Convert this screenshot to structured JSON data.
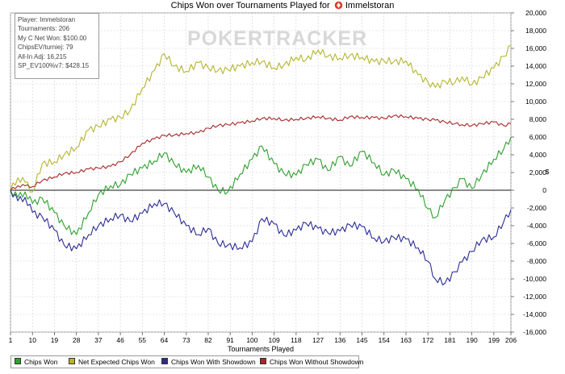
{
  "header": {
    "title": "Chips Won over Tournaments Played for",
    "player": "Immelstoran"
  },
  "watermark": "POKERTRACKER",
  "info_box": [
    "Player: Immelstoran",
    "Tournaments: 206",
    "My C Net Won: $100.00",
    "ChipsEV/turniej: 79",
    "All-In Adj: 16,215",
    "SP_EV100%v7: $428.15"
  ],
  "colors": {
    "chips_won": "#2ea02e",
    "net_expected": "#b5b530",
    "with_showdown": "#2b2b96",
    "without_showdown": "#a82626",
    "grid": "#cfcfcf",
    "zero_line": "#444444",
    "logo": "#e23a2a"
  },
  "chart_data": {
    "type": "line",
    "title": "Chips Won over Tournaments Played for Immelstoran",
    "xlabel": "Tournaments Played",
    "ylabel": "$",
    "xlim": [
      1,
      206
    ],
    "ylim": [
      -16000,
      20000
    ],
    "x_ticks": [
      1,
      10,
      19,
      28,
      37,
      46,
      55,
      64,
      73,
      82,
      91,
      100,
      109,
      118,
      127,
      136,
      145,
      154,
      163,
      172,
      181,
      190,
      199,
      206
    ],
    "y_ticks": [
      20000,
      18000,
      16000,
      14000,
      12000,
      10000,
      8000,
      6000,
      4000,
      2000,
      0,
      -2000,
      -4000,
      -6000,
      -8000,
      -10000,
      -12000,
      -14000,
      -16000
    ],
    "y_tick_labels": [
      "20,000",
      "18,000",
      "16,000",
      "14,000",
      "12,000",
      "10,000",
      "8,000",
      "6,000",
      "4,000",
      "2,000",
      "0",
      "-2,000",
      "-4,000",
      "-6,000",
      "-8,000",
      "-10,000",
      "-12,000",
      "-14,000",
      "-16,000"
    ],
    "grid": true,
    "legend_position": "bottom-left",
    "series": [
      {
        "name": "Chips Won",
        "x": [
          1,
          4,
          7,
          10,
          14,
          19,
          23,
          28,
          33,
          37,
          42,
          46,
          50,
          55,
          60,
          64,
          68,
          73,
          78,
          82,
          86,
          90,
          95,
          100,
          104,
          109,
          113,
          118,
          122,
          127,
          131,
          136,
          140,
          145,
          150,
          154,
          158,
          163,
          168,
          172,
          175,
          179,
          183,
          186,
          190,
          194,
          199,
          203,
          206
        ],
        "y": [
          0,
          -800,
          -200,
          -1500,
          -900,
          -2500,
          -4000,
          -5000,
          -2500,
          -500,
          500,
          600,
          1800,
          2500,
          3300,
          4200,
          3000,
          2000,
          2800,
          1500,
          0,
          -200,
          1800,
          3500,
          5000,
          3000,
          1900,
          1700,
          2900,
          3500,
          2200,
          3800,
          2700,
          4400,
          3100,
          1700,
          2300,
          1300,
          100,
          -2100,
          -3100,
          -1100,
          300,
          1300,
          200,
          1700,
          3500,
          4600,
          6000
        ]
      },
      {
        "name": "Net Expected Chips Won",
        "x": [
          1,
          4,
          7,
          10,
          14,
          19,
          23,
          28,
          33,
          37,
          42,
          46,
          50,
          55,
          60,
          64,
          68,
          73,
          78,
          82,
          86,
          90,
          95,
          100,
          104,
          109,
          113,
          118,
          122,
          127,
          131,
          136,
          140,
          145,
          150,
          154,
          158,
          163,
          168,
          172,
          175,
          179,
          183,
          186,
          190,
          194,
          199,
          203,
          206
        ],
        "y": [
          0,
          1400,
          900,
          -200,
          3000,
          3200,
          4000,
          4800,
          6800,
          7200,
          8000,
          8200,
          9000,
          11500,
          13500,
          15400,
          14000,
          13400,
          14400,
          13800,
          13500,
          13600,
          14000,
          14400,
          14500,
          13800,
          14100,
          15000,
          14700,
          15800,
          15100,
          14900,
          15200,
          15000,
          14500,
          14600,
          14500,
          14600,
          13000,
          12200,
          11600,
          12300,
          12100,
          12800,
          11900,
          12700,
          13800,
          15100,
          16300
        ]
      },
      {
        "name": "Chips Won With Showdown",
        "x": [
          1,
          4,
          7,
          10,
          14,
          19,
          23,
          28,
          33,
          37,
          42,
          46,
          50,
          55,
          60,
          64,
          68,
          73,
          78,
          82,
          86,
          90,
          95,
          100,
          104,
          109,
          113,
          118,
          122,
          127,
          131,
          136,
          140,
          145,
          150,
          154,
          158,
          163,
          168,
          172,
          175,
          179,
          183,
          186,
          190,
          194,
          199,
          203,
          206
        ],
        "y": [
          0,
          -1200,
          -800,
          -2500,
          -3000,
          -4500,
          -6200,
          -6600,
          -5000,
          -4000,
          -3200,
          -2800,
          -3500,
          -2600,
          -1500,
          -1500,
          -2500,
          -4000,
          -5000,
          -4300,
          -6000,
          -6200,
          -6500,
          -5800,
          -3200,
          -3800,
          -5100,
          -4500,
          -3700,
          -4300,
          -4800,
          -4600,
          -3900,
          -4100,
          -5400,
          -5800,
          -5300,
          -5500,
          -6500,
          -8000,
          -10000,
          -10500,
          -9200,
          -8100,
          -6900,
          -5600,
          -5300,
          -3600,
          -2200
        ]
      },
      {
        "name": "Chips Won Without Showdown",
        "x": [
          1,
          4,
          7,
          10,
          14,
          19,
          23,
          28,
          33,
          37,
          42,
          46,
          50,
          55,
          60,
          64,
          68,
          73,
          78,
          82,
          86,
          90,
          95,
          100,
          104,
          109,
          113,
          118,
          122,
          127,
          131,
          136,
          140,
          145,
          150,
          154,
          158,
          163,
          168,
          172,
          175,
          179,
          183,
          186,
          190,
          194,
          199,
          203,
          206
        ],
        "y": [
          0,
          500,
          500,
          400,
          1100,
          1500,
          1900,
          2000,
          2400,
          2500,
          2700,
          3200,
          4000,
          5300,
          5800,
          6200,
          6200,
          6400,
          6500,
          7000,
          7300,
          7400,
          7600,
          7800,
          8100,
          8100,
          7900,
          8000,
          8100,
          8300,
          8100,
          7900,
          8300,
          8200,
          8200,
          8100,
          8400,
          8300,
          8100,
          8000,
          7900,
          7700,
          7500,
          7400,
          7300,
          7500,
          7700,
          7300,
          7500
        ]
      }
    ]
  }
}
